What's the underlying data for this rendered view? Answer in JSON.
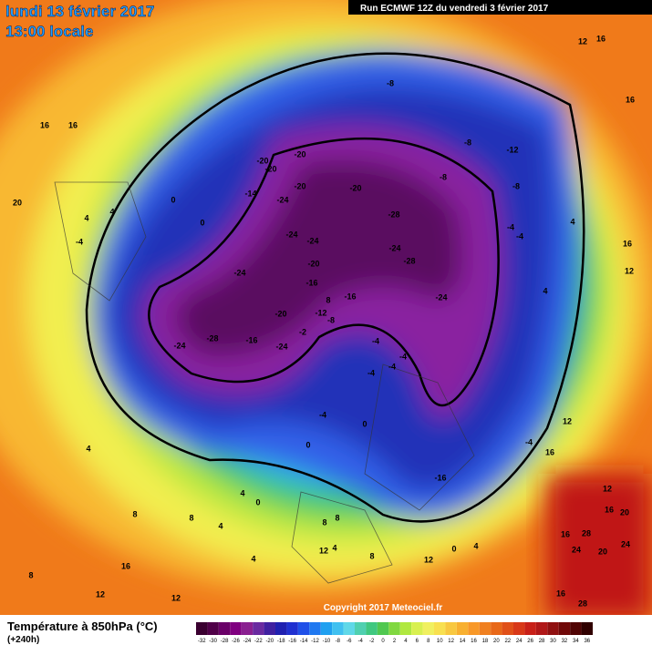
{
  "header": {
    "date": "lundi 13 février 2017",
    "time": "13:00 locale",
    "run": "Run ECMWF 12Z du vendredi 3 février 2017"
  },
  "map": {
    "contour_labels": [
      -20,
      -20,
      -20,
      -20,
      -20,
      -14,
      -24,
      -28,
      -24,
      -24,
      -24,
      -28,
      -20,
      -24,
      -16,
      -16,
      -24,
      -20,
      -12,
      -8,
      -24,
      -28,
      -16,
      -24,
      -2,
      -16,
      -8,
      -8,
      -12,
      -8,
      -8,
      -4,
      -4,
      0,
      0,
      4,
      4,
      -4,
      16,
      16,
      20,
      16,
      12,
      16,
      16,
      12,
      4,
      4,
      0,
      0,
      -4,
      -4,
      -4,
      -4,
      -4,
      -4,
      0,
      4,
      4,
      4,
      4,
      8,
      8,
      8,
      8,
      4,
      12,
      8,
      12,
      0,
      4,
      8,
      16,
      12,
      12,
      12,
      16,
      20,
      16,
      24,
      24,
      20,
      16,
      28,
      28,
      12,
      16,
      8
    ],
    "copyright": "Copyright 2017 Meteociel.fr"
  },
  "footer": {
    "title": "Température à 850hPa (°C)",
    "lead": "(+240h)",
    "scale": [
      -32,
      -30,
      -28,
      -26,
      -24,
      -22,
      -20,
      -18,
      -16,
      -14,
      -12,
      -10,
      -8,
      -6,
      -4,
      -2,
      0,
      2,
      4,
      6,
      8,
      10,
      12,
      14,
      16,
      18,
      20,
      22,
      24,
      26,
      28,
      30,
      32,
      34,
      36
    ]
  }
}
